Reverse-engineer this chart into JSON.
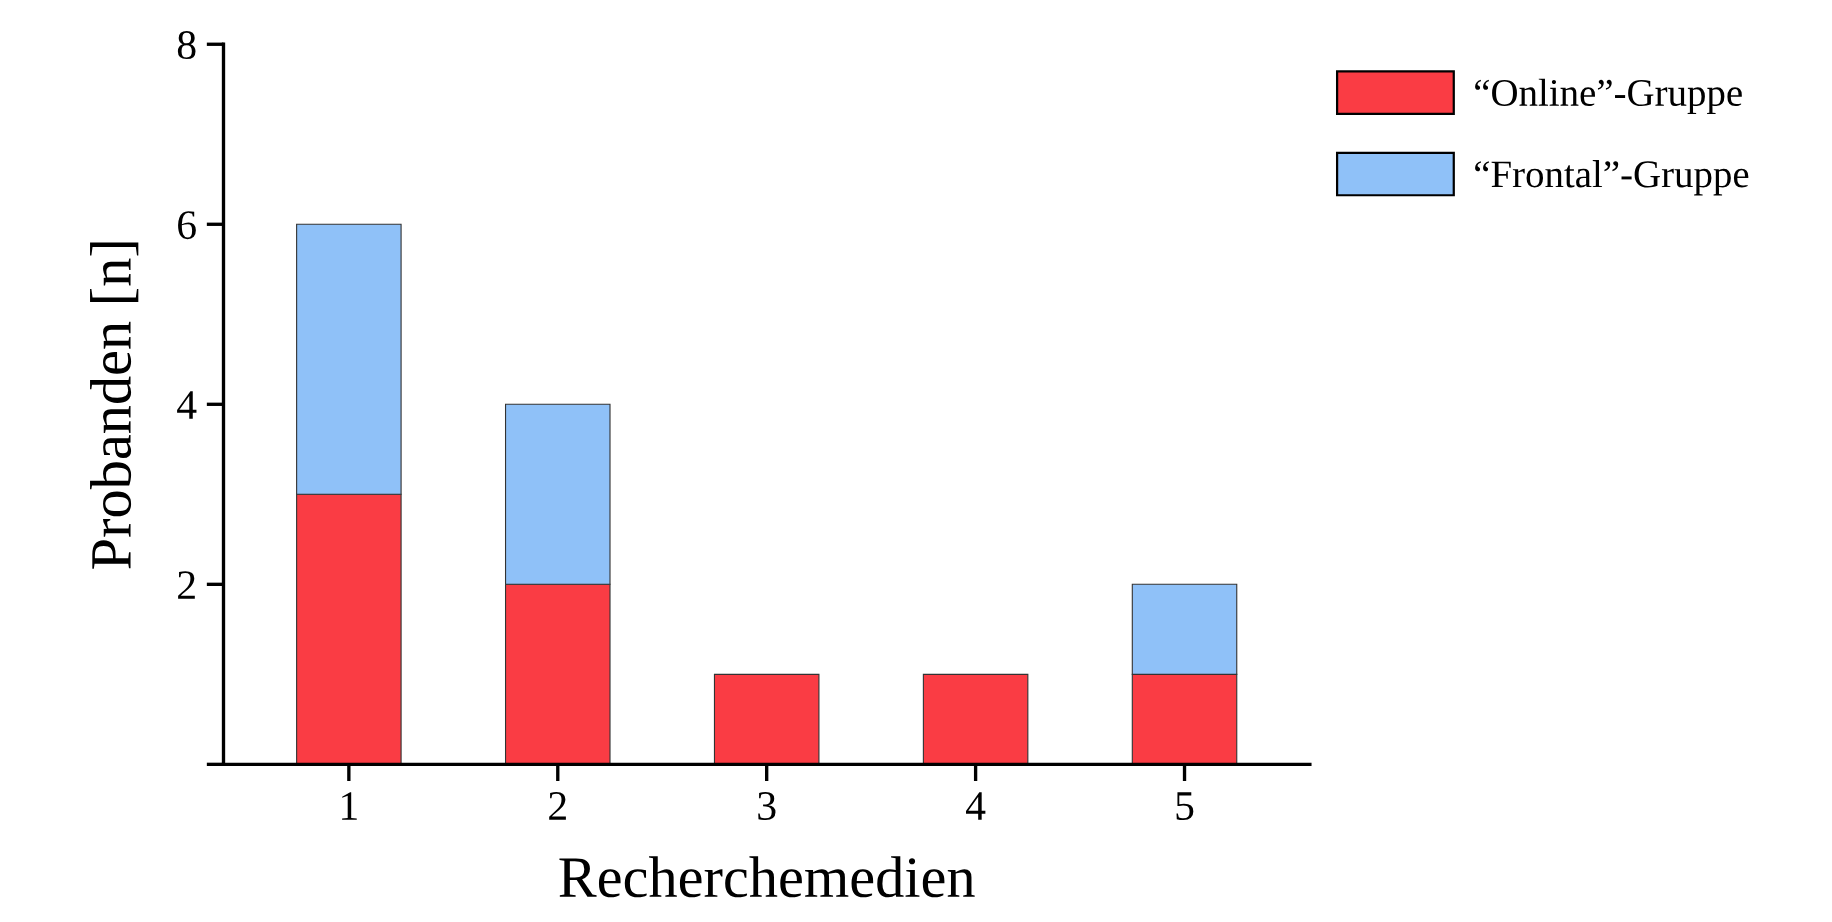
{
  "chart_data": {
    "type": "bar",
    "stacked": true,
    "xlabel": "Recherchemedien",
    "ylabel": "Probanden [n]",
    "categories": [
      "1",
      "2",
      "3",
      "4",
      "5"
    ],
    "series": [
      {
        "name": "“Online”-Gruppe",
        "color": "#fa3c44",
        "values": [
          3,
          2,
          1,
          1,
          1
        ]
      },
      {
        "name": "“Frontal”-Gruppe",
        "color": "#8fc1f8",
        "values": [
          3,
          2,
          0,
          0,
          1
        ]
      }
    ],
    "ylim": [
      0,
      8
    ],
    "yticks": [
      {
        "value": 0,
        "label": null
      },
      2,
      4,
      6,
      8
    ],
    "grid": false,
    "legend": "top right"
  }
}
